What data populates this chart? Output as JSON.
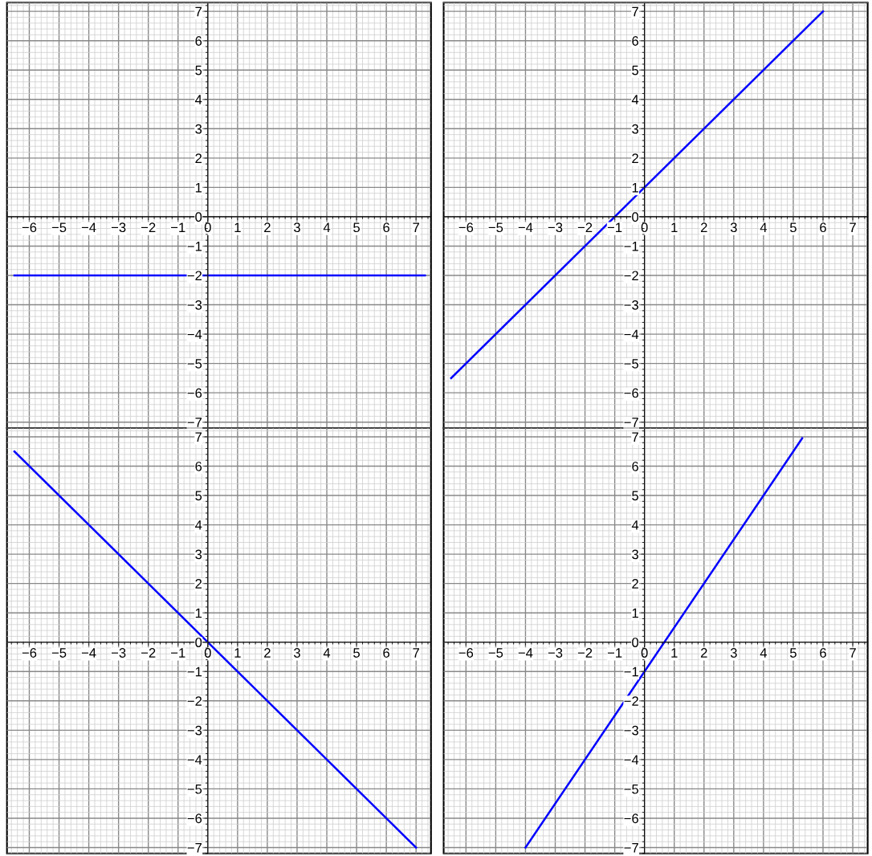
{
  "chart_data": [
    {
      "type": "line",
      "x": [
        -6.5,
        7.3
      ],
      "series": [
        {
          "color": "#0000ff",
          "values": [
            -2,
            -2
          ]
        }
      ],
      "xlim": [
        -6.75,
        7.5
      ],
      "ylim": [
        -7.2,
        7.3
      ],
      "xticks": [
        {
          "value": -6,
          "label": "−6"
        },
        {
          "value": -5,
          "label": "−5"
        },
        {
          "value": -4,
          "label": "−4"
        },
        {
          "value": -3,
          "label": "−3"
        },
        {
          "value": -2,
          "label": "−2"
        },
        {
          "value": -1,
          "label": "−1"
        },
        0,
        1,
        2,
        3,
        4,
        5,
        6,
        7
      ],
      "yticks": [
        {
          "value": -7,
          "label": "−7"
        },
        {
          "value": -6,
          "label": "−6"
        },
        {
          "value": -5,
          "label": "−5"
        },
        {
          "value": -4,
          "label": "−4"
        },
        {
          "value": -3,
          "label": "−3"
        },
        {
          "value": -2,
          "label": "−2"
        },
        {
          "value": -1,
          "label": "−1"
        },
        0,
        1,
        2,
        3,
        4,
        5,
        6,
        7
      ],
      "grid": true
    },
    {
      "type": "line",
      "x": [
        -6.5,
        6.0
      ],
      "series": [
        {
          "color": "#0000ff",
          "values": [
            -5.5,
            7.0
          ]
        }
      ],
      "xlim": [
        -6.75,
        7.5
      ],
      "ylim": [
        -7.2,
        7.3
      ],
      "xticks": [
        {
          "value": -6,
          "label": "−6"
        },
        {
          "value": -5,
          "label": "−5"
        },
        {
          "value": -4,
          "label": "−4"
        },
        {
          "value": -3,
          "label": "−3"
        },
        {
          "value": -2,
          "label": "−2"
        },
        {
          "value": -1,
          "label": "−1"
        },
        0,
        1,
        2,
        3,
        4,
        5,
        6,
        7
      ],
      "yticks": [
        {
          "value": -7,
          "label": "−7"
        },
        {
          "value": -6,
          "label": "−6"
        },
        {
          "value": -5,
          "label": "−5"
        },
        {
          "value": -4,
          "label": "−4"
        },
        {
          "value": -3,
          "label": "−3"
        },
        {
          "value": -2,
          "label": "−2"
        },
        {
          "value": -1,
          "label": "−1"
        },
        0,
        1,
        2,
        3,
        4,
        5,
        6,
        7
      ],
      "grid": true
    },
    {
      "type": "line",
      "x": [
        -6.5,
        7.0
      ],
      "series": [
        {
          "color": "#0000ff",
          "values": [
            6.5,
            -7.0
          ]
        }
      ],
      "xlim": [
        -6.75,
        7.5
      ],
      "ylim": [
        -7.2,
        7.3
      ],
      "xticks": [
        {
          "value": -6,
          "label": "−6"
        },
        {
          "value": -5,
          "label": "−5"
        },
        {
          "value": -4,
          "label": "−4"
        },
        {
          "value": -3,
          "label": "−3"
        },
        {
          "value": -2,
          "label": "−2"
        },
        {
          "value": -1,
          "label": "−1"
        },
        0,
        1,
        2,
        3,
        4,
        5,
        6,
        7
      ],
      "yticks": [
        {
          "value": -7,
          "label": "−7"
        },
        {
          "value": -6,
          "label": "−6"
        },
        {
          "value": -5,
          "label": "−5"
        },
        {
          "value": -4,
          "label": "−4"
        },
        {
          "value": -3,
          "label": "−3"
        },
        {
          "value": -2,
          "label": "−2"
        },
        {
          "value": -1,
          "label": "−1"
        },
        0,
        1,
        2,
        3,
        4,
        5,
        6,
        7
      ],
      "grid": true
    },
    {
      "type": "line",
      "x": [
        -4.0,
        5.3
      ],
      "series": [
        {
          "color": "#0000ff",
          "values": [
            -7.0,
            6.95
          ]
        }
      ],
      "xlim": [
        -6.75,
        7.5
      ],
      "ylim": [
        -7.2,
        7.3
      ],
      "xticks": [
        {
          "value": -6,
          "label": "−6"
        },
        {
          "value": -5,
          "label": "−5"
        },
        {
          "value": -4,
          "label": "−4"
        },
        {
          "value": -3,
          "label": "−3"
        },
        {
          "value": -2,
          "label": "−2"
        },
        {
          "value": -1,
          "label": "−1"
        },
        0,
        1,
        2,
        3,
        4,
        5,
        6,
        7
      ],
      "yticks": [
        {
          "value": -7,
          "label": "−7"
        },
        {
          "value": -6,
          "label": "−6"
        },
        {
          "value": -5,
          "label": "−5"
        },
        {
          "value": -4,
          "label": "−4"
        },
        {
          "value": -3,
          "label": "−3"
        },
        {
          "value": -2,
          "label": "−2"
        },
        {
          "value": -1,
          "label": "−1"
        },
        0,
        1,
        2,
        3,
        4,
        5,
        6,
        7
      ],
      "grid": true
    }
  ]
}
